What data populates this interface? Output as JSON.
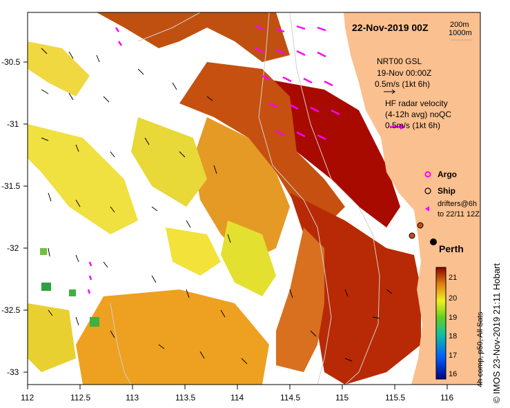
{
  "title": "22-Nov-2019 00Z",
  "isobaths": [
    "200m",
    "1000m"
  ],
  "model": {
    "name": "NRT00 GSL",
    "date": "19-Nov 00:00Z",
    "scale": "0.5m/s (1kt 6h)"
  },
  "radar": {
    "line1": "HF radar velocity",
    "line2": "(4-12h avg) noQC",
    "scale": "0.5m/s (1kt 6h)"
  },
  "legend": {
    "argo": "Argo",
    "ship": "Ship",
    "drifters1": "drifters@6h",
    "drifters2": "to 22/11 12Z"
  },
  "city": "Perth",
  "x_ticks": [
    "112",
    "112.5",
    "113",
    "113.5",
    "114",
    "114.5",
    "115",
    "115.5",
    "116"
  ],
  "y_ticks": [
    "-30.5",
    "-31",
    "-31.5",
    "-32",
    "-32.5",
    "-33"
  ],
  "colorbar": {
    "ticks": [
      "16",
      "17",
      "18",
      "19",
      "20",
      "21"
    ],
    "label": "4h comp, p50, All Sats"
  },
  "credit": "© IMOS 23-Nov-2019 21:11 Hobart",
  "colors": {
    "land": "#fbc08f",
    "hot": "#a80a00",
    "mid": "#d06010",
    "warm": "#f0a020",
    "cool": "#e4e030",
    "green": "#40b040",
    "radar": "#ff00ff"
  }
}
